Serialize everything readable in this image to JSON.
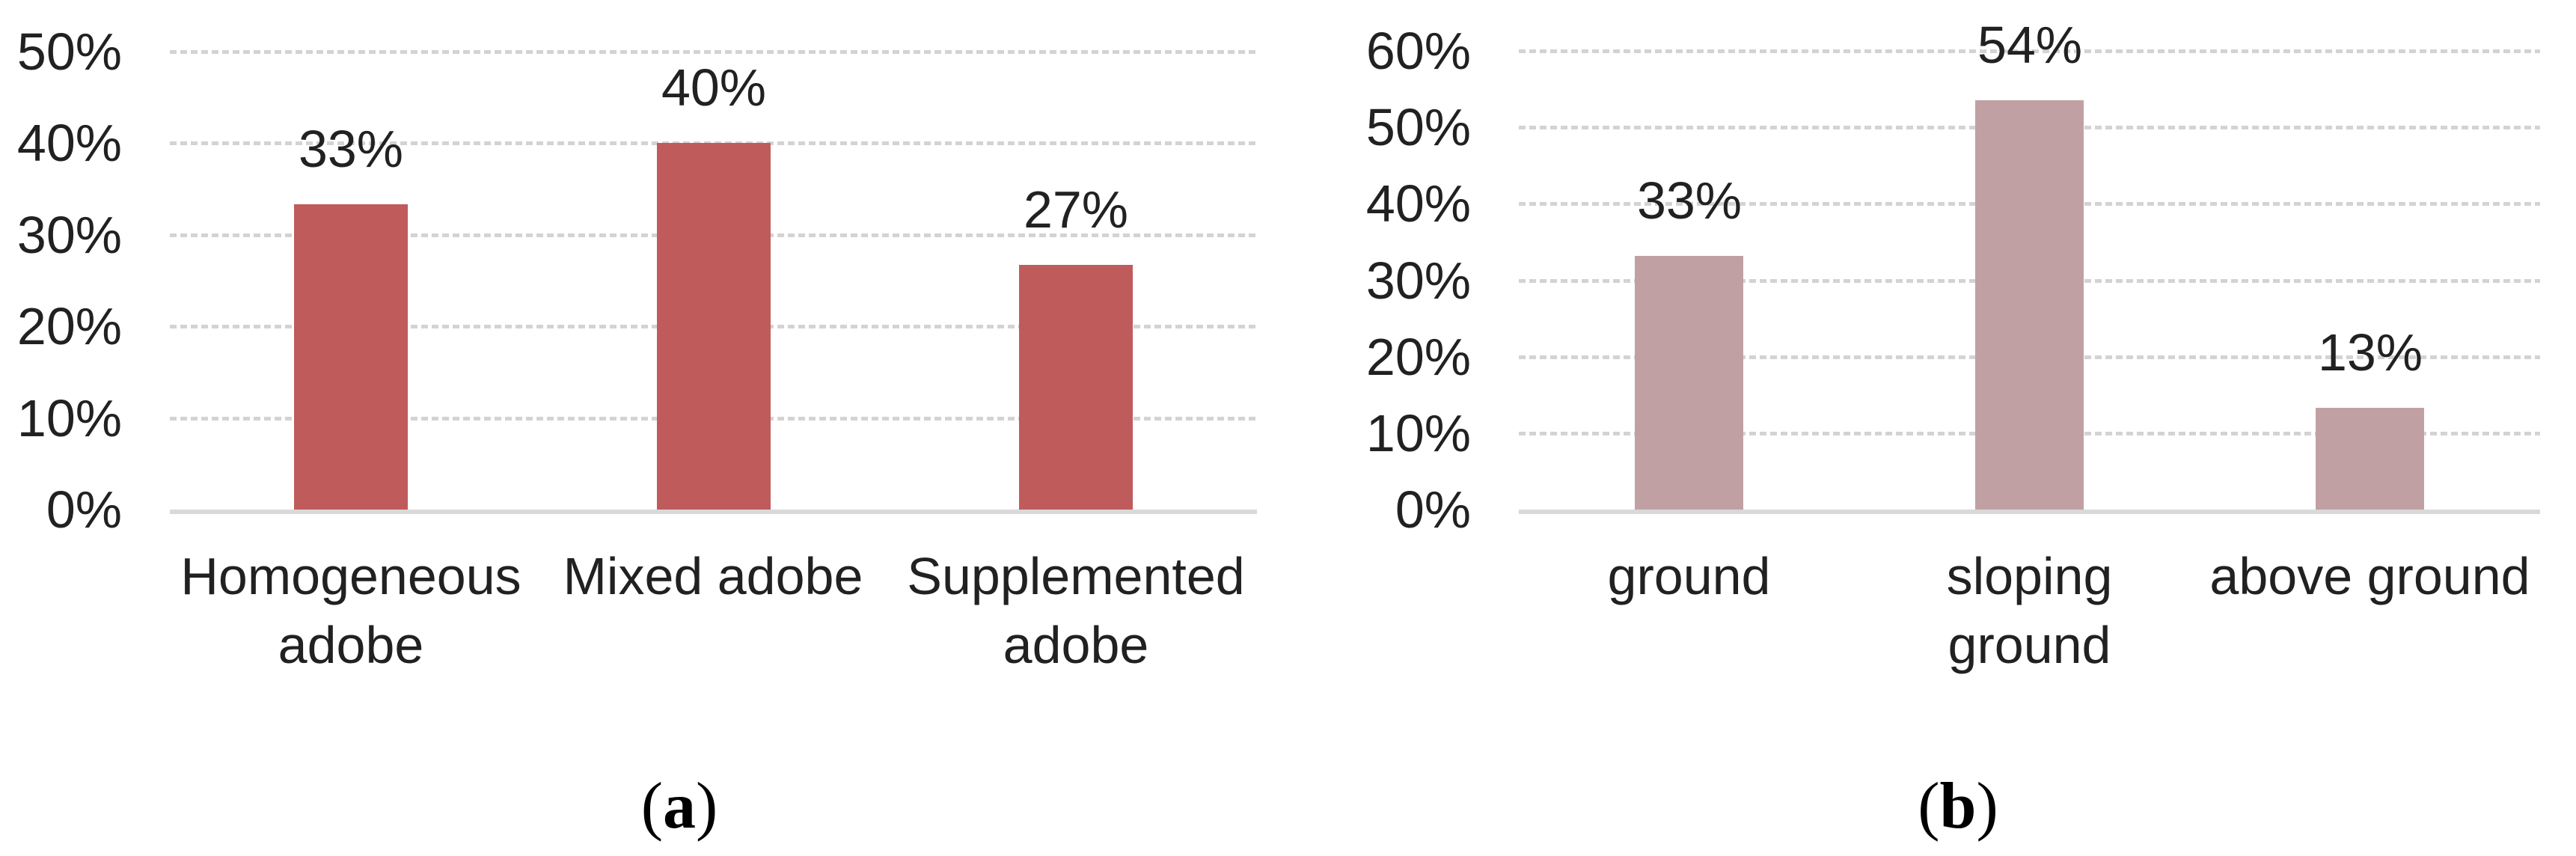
{
  "figure": {
    "background_color": "#FFFFFF",
    "panel_captions": [
      {
        "pre": "(",
        "letter": "a",
        "post": ")"
      },
      {
        "pre": "(",
        "letter": "b",
        "post": ")"
      }
    ]
  },
  "chart_data": [
    {
      "type": "bar",
      "panel": "a",
      "title": "",
      "xlabel": "",
      "ylabel": "",
      "categories": [
        "Homogeneous adobe",
        "Mixed adobe",
        "Supplemented adobe"
      ],
      "category_label_lines": [
        [
          "Homogeneous",
          "adobe"
        ],
        [
          "Mixed adobe"
        ],
        [
          "Supplemented",
          "adobe"
        ]
      ],
      "values": [
        33.3,
        40,
        26.7
      ],
      "bar_labels": [
        "33%",
        "40%",
        "27%"
      ],
      "ylim": [
        0,
        50
      ],
      "ytick_step": 10,
      "ytick_labels": [
        "0%",
        "10%",
        "20%",
        "30%",
        "40%",
        "50%"
      ],
      "grid": "horizontal-dotted",
      "legend": "none",
      "bar_color": "#C05B5C",
      "gridline_color": "#D5D2D2",
      "axis_line_color": "#D9D9D9",
      "text_color": "#212121"
    },
    {
      "type": "bar",
      "panel": "b",
      "title": "",
      "xlabel": "",
      "ylabel": "",
      "categories": [
        "ground",
        "sloping ground",
        "above ground"
      ],
      "category_label_lines": [
        [
          "ground"
        ],
        [
          "sloping",
          "ground"
        ],
        [
          "above ground"
        ]
      ],
      "values": [
        33.2,
        53.5,
        13.3
      ],
      "bar_labels": [
        "33%",
        "54%",
        "13%"
      ],
      "ylim": [
        0,
        60
      ],
      "ytick_step": 10,
      "ytick_labels": [
        "0%",
        "10%",
        "20%",
        "30%",
        "40%",
        "50%",
        "60%"
      ],
      "grid": "horizontal-dotted",
      "legend": "none",
      "bar_color": "#C1A0A3",
      "gridline_color": "#D5D2D2",
      "axis_line_color": "#D9D9D9",
      "text_color": "#212121"
    }
  ]
}
